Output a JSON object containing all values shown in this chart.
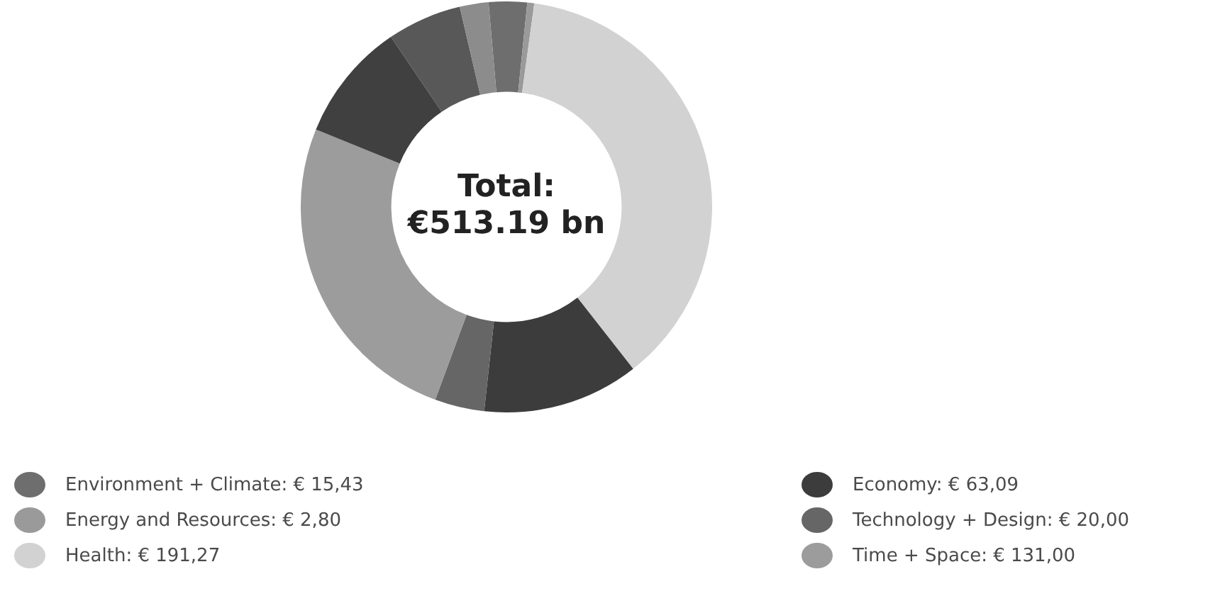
{
  "chart_data": {
    "type": "donut",
    "annotations": [
      "Total:",
      "€513.19 bn"
    ],
    "categories": [
      "Environment + Climate",
      "Energy and Resources",
      "Health",
      "Economy",
      "Technology + Design",
      "Time + Space",
      null,
      null,
      null
    ],
    "values": [
      15.43,
      2.8,
      191.27,
      63.09,
      20.0,
      131.0,
      48,
      30,
      11.6
    ],
    "value_labels": [
      "€ 15,43",
      "€ 2,80",
      "€ 191,27",
      "€ 63,09",
      "€ 20,00",
      "€ 131,00",
      null,
      null,
      null
    ],
    "colors": [
      "#6e6e6e",
      "#9a9a9a",
      "#d2d2d2",
      "#3c3c3c",
      "#666666",
      "#9c9c9c",
      "#404040",
      "#585858",
      "#8c8c8c"
    ],
    "legend": "bottom"
  }
}
